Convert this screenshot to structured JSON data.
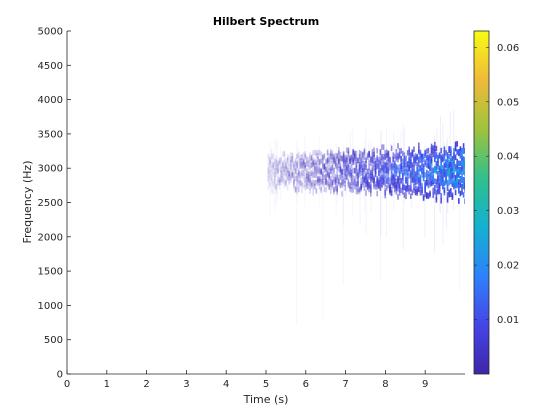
{
  "chart_data": {
    "type": "heatmap",
    "title": "Hilbert Spectrum",
    "xlabel": "Time (s)",
    "ylabel": "Frequency (Hz)",
    "xlim": [
      0,
      10
    ],
    "ylim": [
      0,
      5000
    ],
    "xticks": [
      0,
      1,
      2,
      3,
      4,
      5,
      6,
      7,
      8,
      9
    ],
    "yticks": [
      0,
      500,
      1000,
      1500,
      2000,
      2500,
      3000,
      3500,
      4000,
      4500,
      5000
    ],
    "colorbar": {
      "range": [
        0,
        0.063
      ],
      "ticks": [
        0.01,
        0.02,
        0.03,
        0.04,
        0.05,
        0.06
      ],
      "colormap": "parula",
      "colors": [
        "#3e26a8",
        "#4545e8",
        "#2d82fb",
        "#13b1d1",
        "#30c08c",
        "#9fc33c",
        "#efba38",
        "#f9fb15"
      ]
    },
    "energy_band": {
      "time_start": 5.0,
      "time_end": 10.0,
      "center_freq": 2950,
      "core_low": 2600,
      "core_high": 3350,
      "peak_time": 10.0,
      "peak_value": 0.035
    },
    "grid": false
  }
}
